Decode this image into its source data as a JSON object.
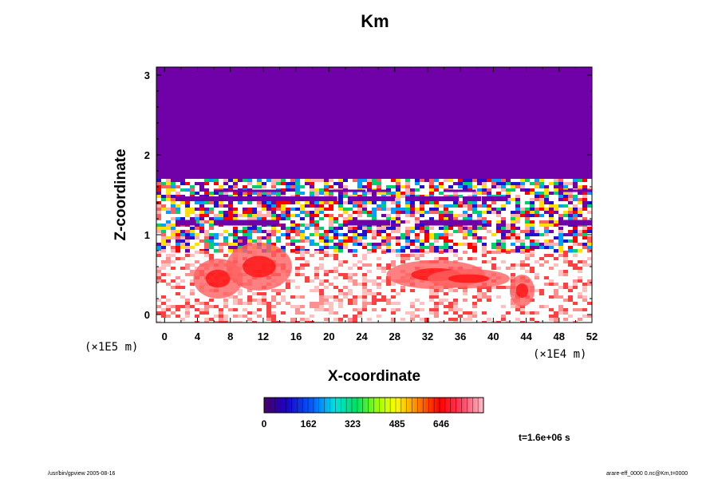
{
  "title": "Km",
  "time_label": "t=1.6e+06 s",
  "footer_left": "/usr/bin/gpview 2005-08-16",
  "footer_right": "arare-eff_0000 0.nc@Km,t=0000",
  "chart_data": {
    "type": "heatmap",
    "title": "Km",
    "xlabel": "X-coordinate",
    "ylabel": "Z-coordinate",
    "x_unit": "(×1E4 m)",
    "y_unit": "(×1E5 m)",
    "xlim": [
      -1,
      52
    ],
    "ylim": [
      -0.1,
      3.1
    ],
    "x_ticks": [
      "0",
      "4",
      "8",
      "12",
      "16",
      "20",
      "24",
      "28",
      "32",
      "36",
      "40",
      "44",
      "48",
      "52"
    ],
    "x_tick_values": [
      0,
      4,
      8,
      12,
      16,
      20,
      24,
      28,
      32,
      36,
      40,
      44,
      48,
      52
    ],
    "y_ticks": [
      "0",
      "1",
      "2",
      "3"
    ],
    "y_tick_values": [
      0,
      1,
      2,
      3
    ],
    "colorbar": {
      "min": 0,
      "max": 800,
      "tick_labels": [
        "0",
        "162",
        "323",
        "485",
        "646"
      ],
      "tick_values": [
        0,
        162,
        323,
        485,
        646
      ]
    },
    "regions": {
      "upper_uniform_value": 0,
      "upper_region_z_min": 1.7,
      "turbulent_band_z": [
        0.8,
        1.7
      ],
      "lower_region_z_max": 0.8
    }
  }
}
